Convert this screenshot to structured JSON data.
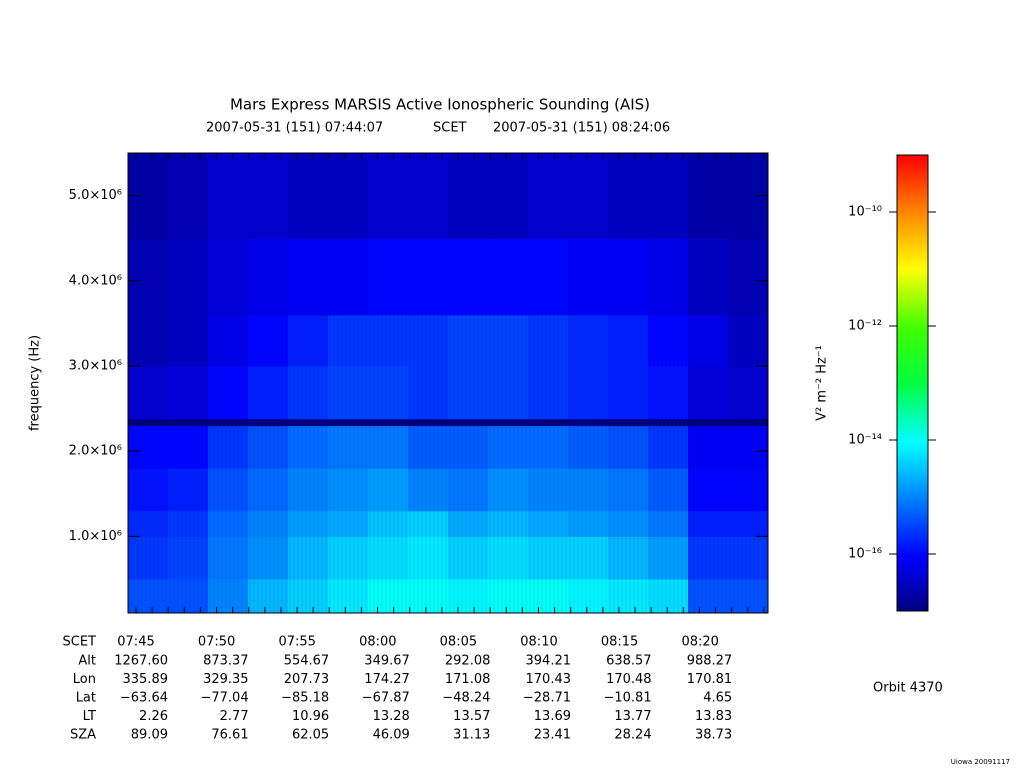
{
  "chart_data": {
    "type": "spectrogram",
    "title": "Mars Express MARSIS Active Ionospheric Sounding (AIS)",
    "start_time": "2007-05-31 (151) 07:44:07",
    "time_label": "SCET",
    "end_time": "2007-05-31 (151) 08:24:06",
    "ylabel": "frequency (Hz)",
    "ylim": [
      100000,
      5500000
    ],
    "yticks": [
      {
        "value": 1000000,
        "label": "1.0×10⁶"
      },
      {
        "value": 2000000,
        "label": "2.0×10⁶"
      },
      {
        "value": 3000000,
        "label": "3.0×10⁶"
      },
      {
        "value": 4000000,
        "label": "4.0×10⁶"
      },
      {
        "value": 5000000,
        "label": "5.0×10⁶"
      }
    ],
    "y_edges": [
      100000,
      500000,
      1000000,
      1300000,
      1800000,
      2300000,
      2380000,
      3000000,
      3600000,
      4500000,
      5500000
    ],
    "z": [
      [
        -15.4,
        -15.4,
        -15.0,
        -14.6,
        -14.4,
        -14.2,
        -14.0,
        -14.0,
        -14.1,
        -14.0,
        -14.0,
        -14.1,
        -14.2,
        -14.3,
        -15.4,
        -15.4
      ],
      [
        -15.6,
        -15.5,
        -15.1,
        -14.9,
        -14.6,
        -14.4,
        -14.3,
        -14.2,
        -14.4,
        -14.3,
        -14.4,
        -14.4,
        -14.6,
        -14.8,
        -15.6,
        -15.6
      ],
      [
        -15.7,
        -15.6,
        -15.2,
        -15.0,
        -14.8,
        -14.7,
        -14.5,
        -14.4,
        -14.7,
        -14.6,
        -14.7,
        -14.8,
        -14.9,
        -15.1,
        -15.8,
        -15.8
      ],
      [
        -15.9,
        -15.8,
        -15.4,
        -15.2,
        -15.0,
        -14.9,
        -14.8,
        -15.0,
        -15.1,
        -14.9,
        -15.0,
        -15.0,
        -15.1,
        -15.3,
        -16.0,
        -16.0
      ],
      [
        -16.0,
        -16.0,
        -15.6,
        -15.4,
        -15.2,
        -15.1,
        -15.1,
        -15.3,
        -15.3,
        -15.2,
        -15.2,
        -15.3,
        -15.4,
        -15.6,
        -16.1,
        -16.1
      ],
      [
        -17.0,
        -17.0,
        -17.0,
        -17.0,
        -17.0,
        -17.0,
        -17.0,
        -17.0,
        -17.0,
        -17.0,
        -17.0,
        -17.0,
        -17.0,
        -17.0,
        -17.0,
        -17.0
      ],
      [
        -16.4,
        -16.3,
        -16.0,
        -15.8,
        -15.6,
        -15.5,
        -15.5,
        -15.6,
        -15.5,
        -15.5,
        -15.6,
        -15.7,
        -15.8,
        -15.9,
        -16.3,
        -16.4
      ],
      [
        -16.6,
        -16.5,
        -16.2,
        -16.0,
        -15.8,
        -15.6,
        -15.6,
        -15.6,
        -15.5,
        -15.5,
        -15.6,
        -15.7,
        -15.8,
        -16.0,
        -16.2,
        -16.5
      ],
      [
        -16.6,
        -16.5,
        -16.3,
        -16.2,
        -16.1,
        -16.1,
        -16.0,
        -16.0,
        -16.0,
        -16.0,
        -16.0,
        -16.1,
        -16.1,
        -16.2,
        -16.5,
        -16.6
      ],
      [
        -16.7,
        -16.6,
        -16.4,
        -16.4,
        -16.5,
        -16.5,
        -16.4,
        -16.4,
        -16.5,
        -16.5,
        -16.4,
        -16.4,
        -16.5,
        -16.5,
        -16.7,
        -16.7
      ]
    ],
    "zlim": [
      -17,
      -9
    ],
    "zticks": [
      {
        "value": -10,
        "label": "10⁻¹⁰"
      },
      {
        "value": -12,
        "label": "10⁻¹²"
      },
      {
        "value": -14,
        "label": "10⁻¹⁴"
      },
      {
        "value": -16,
        "label": "10⁻¹⁶"
      }
    ],
    "zlabel": "V² m⁻² Hz⁻¹",
    "ephemeris": {
      "columns": [
        "07:45",
        "07:50",
        "07:55",
        "08:00",
        "08:05",
        "08:10",
        "08:15",
        "08:20"
      ],
      "header": "SCET",
      "rows": [
        {
          "name": "Alt",
          "values": [
            "1267.60",
            "873.37",
            "554.67",
            "349.67",
            "292.08",
            "394.21",
            "638.57",
            "988.27"
          ]
        },
        {
          "name": "Lon",
          "values": [
            "335.89",
            "329.35",
            "207.73",
            "174.27",
            "171.08",
            "170.43",
            "170.48",
            "170.81"
          ]
        },
        {
          "name": "Lat",
          "values": [
            "−63.64",
            "−77.04",
            "−85.18",
            "−67.87",
            "−48.24",
            "−28.71",
            "−10.81",
            "4.65"
          ]
        },
        {
          "name": "LT",
          "values": [
            "2.26",
            "2.77",
            "10.96",
            "13.28",
            "13.57",
            "13.69",
            "13.77",
            "13.83"
          ]
        },
        {
          "name": "SZA",
          "values": [
            "89.09",
            "76.61",
            "62.05",
            "46.09",
            "31.13",
            "23.41",
            "28.24",
            "38.73"
          ]
        }
      ]
    },
    "orbit": "Orbit 4370",
    "credit": "Uiowa 20091117"
  }
}
